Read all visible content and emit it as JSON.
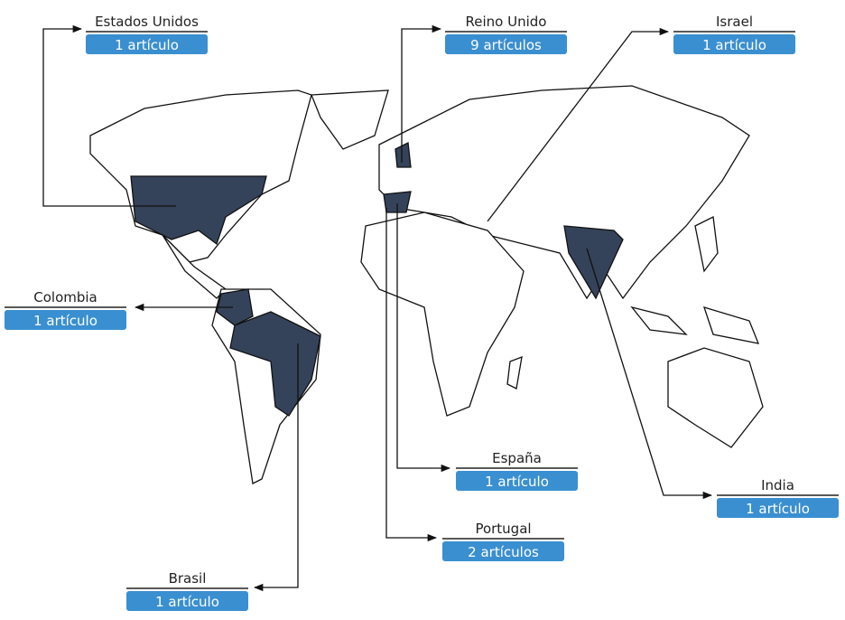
{
  "labels": [
    {
      "country": "Estados Unidos",
      "count": "1 artículo"
    },
    {
      "country": "Reino Unido",
      "count": "9 artículos"
    },
    {
      "country": "Israel",
      "count": "1 artículo"
    },
    {
      "country": "Colombia",
      "count": "1 artículo"
    },
    {
      "country": "Brasil",
      "count": "1 artículo"
    },
    {
      "country": "España",
      "count": "1 artículo"
    },
    {
      "country": "Portugal",
      "count": "2 artículos"
    },
    {
      "country": "India",
      "count": "1 artículo"
    }
  ]
}
